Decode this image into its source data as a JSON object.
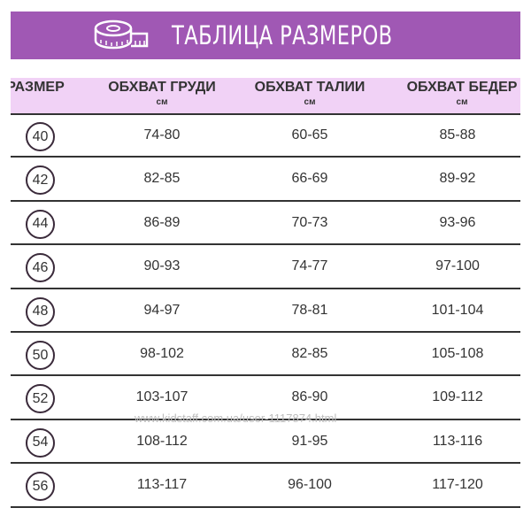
{
  "banner": {
    "title": "ТАБЛИЦА РАЗМЕРОВ",
    "icon": "measuring-tape-icon",
    "color": "#a058b4"
  },
  "table": {
    "headers": [
      {
        "label": "РАЗМЕР",
        "unit": ""
      },
      {
        "label": "ОБХВАТ ГРУДИ",
        "unit": "см"
      },
      {
        "label": "ОБХВАТ ТАЛИИ",
        "unit": "см"
      },
      {
        "label": "ОБХВАТ БЕДЕР",
        "unit": "см"
      }
    ],
    "rows": [
      [
        "40",
        "74-80",
        "60-65",
        "85-88"
      ],
      [
        "42",
        "82-85",
        "66-69",
        "89-92"
      ],
      [
        "44",
        "86-89",
        "70-73",
        "93-96"
      ],
      [
        "46",
        "90-93",
        "74-77",
        "97-100"
      ],
      [
        "48",
        "94-97",
        "78-81",
        "101-104"
      ],
      [
        "50",
        "98-102",
        "82-85",
        "105-108"
      ],
      [
        "52",
        "103-107",
        "86-90",
        "109-112"
      ],
      [
        "54",
        "108-112",
        "91-95",
        "113-116"
      ],
      [
        "56",
        "113-117",
        "96-100",
        "117-120"
      ]
    ]
  },
  "watermark": "www.kidstaff.com.ua/user-1117874.html"
}
